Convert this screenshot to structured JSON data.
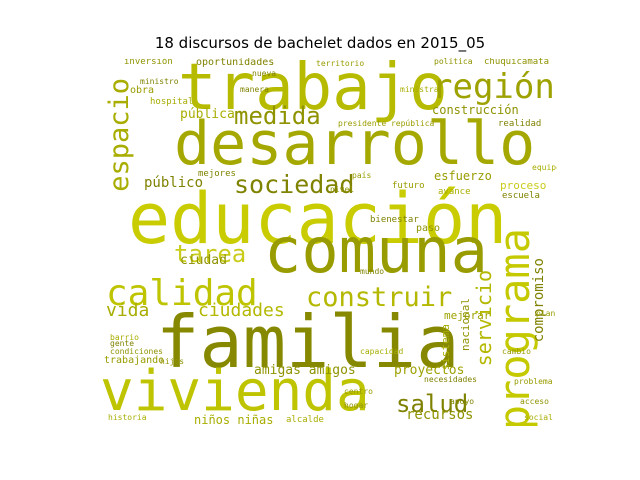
{
  "title": "18 discursos de bachelet dados en 2015_05",
  "palette": [
    "#bfc400",
    "#a8ad00",
    "#8f9300",
    "#c9cc1a",
    "#b4b800",
    "#999c00",
    "#7f8200",
    "#d0d33a"
  ],
  "words": [
    "trabajo",
    "región",
    "desarrollo",
    "medida",
    "espacio",
    "sociedad",
    "público",
    "educación",
    "comuna",
    "tarea",
    "calidad",
    "construir",
    "programa",
    "ciudad",
    "ciudades",
    "vida",
    "familia",
    "servicio",
    "compromiso",
    "vivienda",
    "salud",
    "recursos",
    "proyectos",
    "amigas amigos",
    "niños niñas",
    "oportunidades",
    "obra",
    "pública",
    "construcción",
    "esfuerzo",
    "proceso",
    "mejorar",
    "nacional",
    "sistema",
    "trabajando",
    "paso",
    "bienestar",
    "hospital",
    "mejores",
    "futuro",
    "avance",
    "escuela",
    "realidad",
    "presidente república",
    "inversión",
    "alcalde",
    "chuquicamata",
    "necesidades",
    "problema",
    "condiciones",
    "barrio",
    "ministro",
    "territorio",
    "política",
    "gente",
    "capacidad",
    "acceso",
    "cambio",
    "manera",
    "ministra",
    "nivel",
    "centro",
    "apoyo",
    "equipo",
    "hijos",
    "país",
    "nueva",
    "social",
    "hogar",
    "plan",
    "mundo",
    "historia"
  ]
}
